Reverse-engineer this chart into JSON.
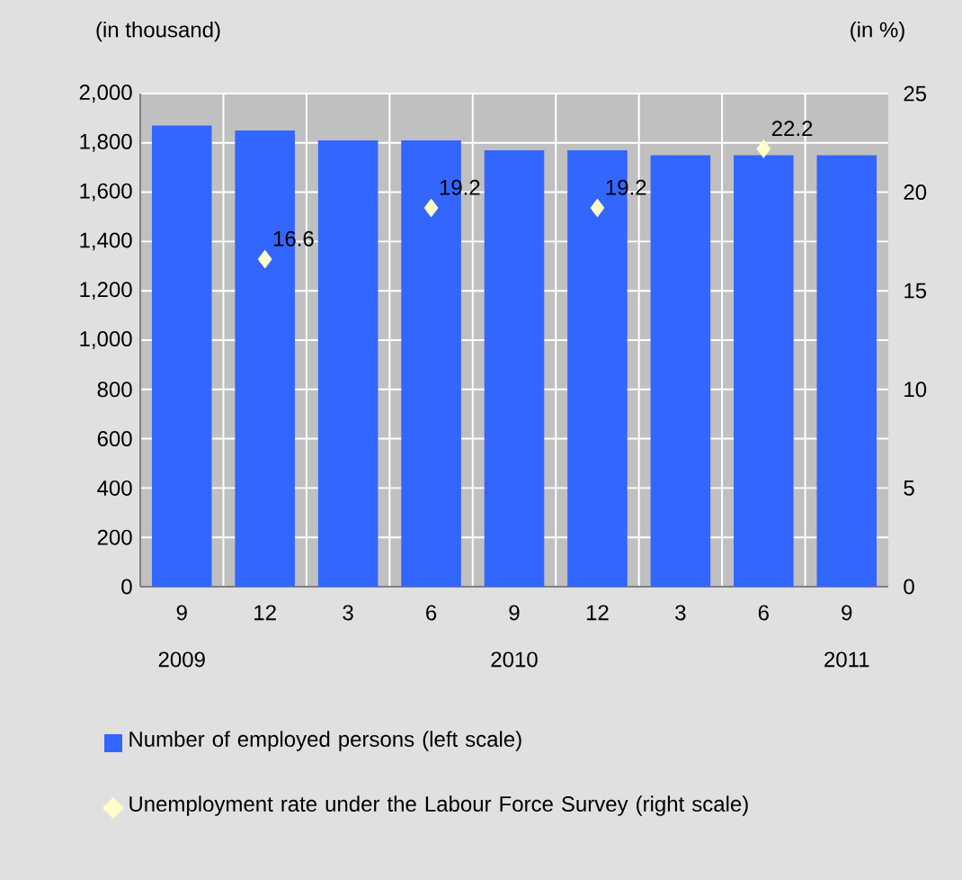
{
  "chart_data": {
    "type": "bar",
    "categories": [
      "9",
      "12",
      "3",
      "6",
      "9",
      "12",
      "3",
      "6",
      "9"
    ],
    "series": [
      {
        "name": "Number of employed persons (left scale)",
        "color": "#3366ff",
        "values": [
          1870,
          1850,
          1810,
          1810,
          1770,
          1770,
          1750,
          1750,
          1750
        ]
      },
      {
        "name": "Unemployment rate under the Labour Force Survey (right scale)",
        "type": "scatter",
        "axis": "y2",
        "marker": "diamond",
        "color": "#ffffcc",
        "values": [
          null,
          16.6,
          null,
          19.2,
          null,
          19.2,
          null,
          22.2,
          null
        ],
        "value_labels": [
          null,
          "16.6",
          null,
          "19.2",
          null,
          "19.2",
          null,
          "22.2",
          null
        ]
      }
    ],
    "ylabel": "(in thousand)",
    "y2label": "(in %)",
    "ylim": [
      0,
      2000
    ],
    "yticks": [
      0,
      200,
      400,
      600,
      800,
      {
        "value": 1000,
        "label": "1,000"
      },
      {
        "value": 1200,
        "label": "1,200"
      },
      {
        "value": 1400,
        "label": "1,400"
      },
      {
        "value": 1600,
        "label": "1,600"
      },
      {
        "value": 1800,
        "label": "1,800"
      },
      {
        "value": 2000,
        "label": "2,000"
      }
    ],
    "y2lim": [
      0,
      25
    ],
    "y2ticks": [
      0,
      5,
      10,
      15,
      20,
      25
    ],
    "annotations": [
      "2009",
      "2010",
      "2011"
    ],
    "grid": true,
    "legend": "bottom"
  }
}
